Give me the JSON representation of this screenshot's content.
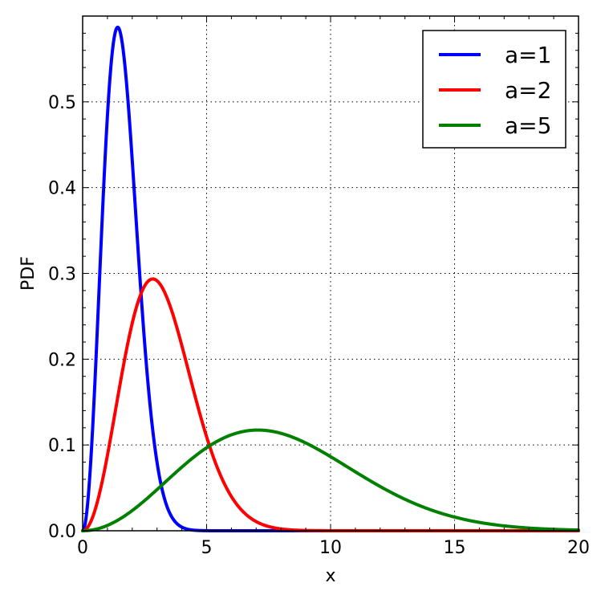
{
  "chart_data": {
    "type": "line",
    "title": "",
    "xlabel": "x",
    "ylabel": "PDF",
    "xlim": [
      0,
      20
    ],
    "ylim": [
      0,
      0.6
    ],
    "x_ticks": [
      "0",
      "5",
      "10",
      "15",
      "20"
    ],
    "y_ticks": [
      "0.0",
      "0.1",
      "0.2",
      "0.3",
      "0.4",
      "0.5"
    ],
    "grid": true,
    "legend_position": "top-right",
    "series": [
      {
        "name": "a=1",
        "color": "#0000ff",
        "distribution": "Maxwell-Boltzmann",
        "scale_a": 1,
        "peak": {
          "x": 1.41,
          "y": 0.587
        }
      },
      {
        "name": "a=2",
        "color": "#ff0000",
        "distribution": "Maxwell-Boltzmann",
        "scale_a": 2,
        "peak": {
          "x": 2.83,
          "y": 0.294
        }
      },
      {
        "name": "a=5",
        "color": "#008000",
        "distribution": "Maxwell-Boltzmann",
        "scale_a": 5,
        "peak": {
          "x": 7.07,
          "y": 0.117
        }
      }
    ]
  }
}
